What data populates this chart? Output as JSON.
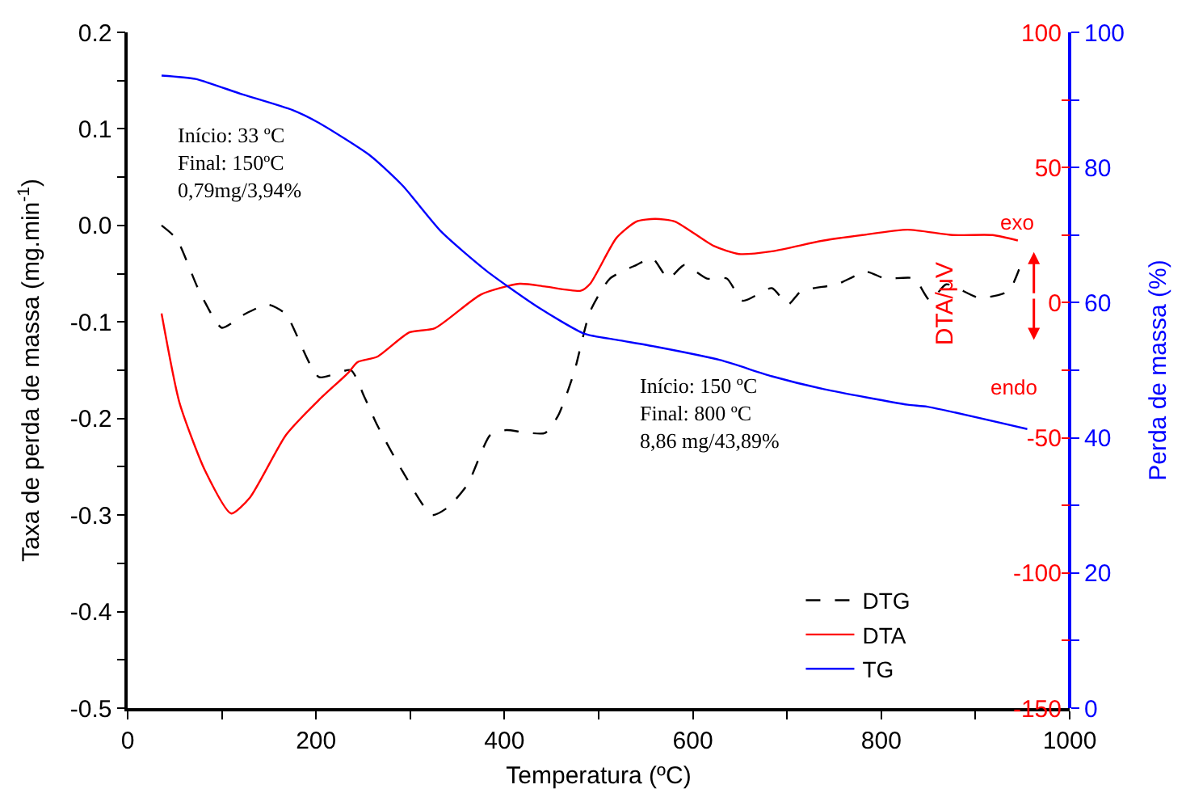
{
  "chart_data": {
    "type": "line",
    "xlabel": "Temperatura (ºC)",
    "ylabel": "Taxa de perda de massa (mg.min$^{-1}$)",
    "y2label": "DTA/μV",
    "y3label": "Perda de massa (%)",
    "xlim": [
      0,
      1000
    ],
    "xticks": [
      0,
      {
        "value": 100,
        "label": null
      },
      200,
      {
        "value": 300,
        "label": null
      },
      400,
      {
        "value": 500,
        "label": null
      },
      600,
      {
        "value": 700,
        "label": null
      },
      800,
      {
        "value": 900,
        "label": null
      },
      1000
    ],
    "ylim": [
      -0.5,
      0.2
    ],
    "yticks": [
      -0.5,
      {
        "value": -0.45,
        "label": null
      },
      -0.4,
      {
        "value": -0.35,
        "label": null
      },
      -0.3,
      {
        "value": -0.25,
        "label": null
      },
      -0.2,
      {
        "value": -0.15,
        "label": null
      },
      -0.1,
      {
        "value": -0.05,
        "label": null
      },
      {
        "value": 0,
        "label": "0.0"
      },
      {
        "value": 0.05,
        "label": null
      },
      0.1,
      {
        "value": 0.15,
        "label": null
      },
      0.2
    ],
    "y2lim": [
      -150,
      100
    ],
    "y2ticks": [
      -150,
      {
        "value": -125,
        "label": null
      },
      -100,
      {
        "value": -75,
        "label": null
      },
      -50,
      {
        "value": -25,
        "label": null
      },
      0,
      {
        "value": 25,
        "label": null
      },
      50,
      {
        "value": 75,
        "label": null
      },
      100
    ],
    "y3lim": [
      0,
      100
    ],
    "y3ticks": [
      0,
      {
        "value": 10,
        "label": null
      },
      20,
      {
        "value": 30,
        "label": null
      },
      40,
      {
        "value": 50,
        "label": null
      },
      60,
      {
        "value": 70,
        "label": null
      },
      80,
      {
        "value": 90,
        "label": null
      },
      100
    ],
    "legend": "bottom right",
    "marker": "none",
    "series": [
      {
        "name": "DTG",
        "color": "#000000",
        "line_style": "dashed",
        "x": [
          36,
          52,
          76,
          100,
          124,
          149,
          168,
          203,
          237,
          251,
          265,
          292,
          323,
          340,
          361,
          385,
          402,
          419,
          443,
          457,
          474,
          491,
          512,
          540,
          557,
          574,
          591,
          615,
          636,
          653,
          684,
          701,
          715,
          753,
          784,
          804,
          835,
          852,
          869,
          904,
          935,
          948
        ],
        "values": [
          0.0,
          -0.014,
          -0.068,
          -0.106,
          -0.092,
          -0.082,
          -0.092,
          -0.157,
          -0.15,
          -0.177,
          -0.207,
          -0.255,
          -0.3,
          -0.292,
          -0.268,
          -0.217,
          -0.212,
          -0.214,
          -0.215,
          -0.197,
          -0.152,
          -0.089,
          -0.055,
          -0.041,
          -0.034,
          -0.055,
          -0.041,
          -0.055,
          -0.055,
          -0.078,
          -0.065,
          -0.082,
          -0.068,
          -0.061,
          -0.048,
          -0.055,
          -0.055,
          -0.078,
          -0.061,
          -0.075,
          -0.068,
          -0.041
        ]
      },
      {
        "name": "DTA",
        "color": "#ff0000",
        "line_style": "solid",
        "axis": "y2",
        "x": [
          36,
          55,
          82,
          110,
          130,
          168,
          203,
          234,
          244,
          265,
          299,
          326,
          375,
          416,
          443,
          481,
          491,
          519,
          540,
          560,
          581,
          622,
          649,
          684,
          739,
          780,
          828,
          876,
          918,
          945
        ],
        "values": [
          -4,
          -37,
          -62,
          -78,
          -72,
          -49,
          -36,
          -26,
          -22,
          -20,
          -11,
          -9.5,
          3,
          7,
          6,
          4.4,
          7,
          24,
          30,
          31,
          30,
          21,
          18,
          19,
          23,
          25,
          27,
          25,
          25,
          23
        ]
      },
      {
        "name": "TG",
        "color": "#0000ff",
        "line_style": "solid",
        "axis": "y3",
        "x": [
          36,
          72,
          120,
          175,
          203,
          258,
          292,
          333,
          381,
          436,
          485,
          519,
          560,
          629,
          684,
          739,
          828,
          849,
          955
        ],
        "values": [
          93.6,
          93.1,
          90.9,
          88.5,
          86.6,
          81.7,
          77.3,
          70.5,
          64.7,
          59.3,
          55.4,
          54.5,
          53.5,
          51.5,
          49.1,
          47.2,
          44.9,
          44.6,
          41.3
        ]
      }
    ],
    "annotations": [
      "Início: 33 ºC\nFinal: 150ºC\n0,79mg/3,94%",
      "Início: 150 ºC\nFinal: 800 ºC\n8,86 mg/43,89%",
      "exo",
      "endo"
    ]
  }
}
